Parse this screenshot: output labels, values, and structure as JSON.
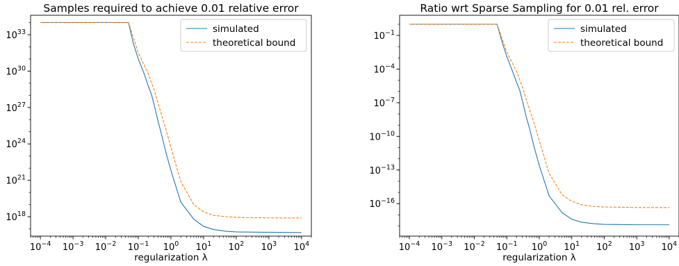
{
  "figure": {
    "panels": [
      {
        "title": "Samples required to achieve 0.01 relative error",
        "xlabel": "regularization λ"
      },
      {
        "title": "Ratio wrt Sparse Sampling for 0.01 rel. error",
        "xlabel": "regularization λ"
      }
    ]
  },
  "chart_data": [
    {
      "type": "line",
      "title": "Samples required to achieve 0.01 relative error",
      "xlabel": "regularization λ",
      "ylabel": "",
      "xscale": "log",
      "yscale": "log",
      "xlim": [
        5e-05,
        20000
      ],
      "ylim_exp": [
        16.4,
        34.6
      ],
      "xticks_exp": [
        -4,
        -3,
        -2,
        -1,
        0,
        1,
        2,
        3,
        4
      ],
      "yticks_exp": [
        18,
        21,
        24,
        27,
        30,
        33
      ],
      "legend": "top-right",
      "grid": false,
      "series": [
        {
          "name": "simulated",
          "color": "#1f77b4",
          "dash": "solid",
          "points": [
            [
              0.0001,
              1e+34
            ],
            [
              0.001,
              1e+34
            ],
            [
              0.01,
              1e+34
            ],
            [
              0.05,
              1e+34
            ],
            [
              0.07,
              2e+32
            ],
            [
              0.1,
              1e+31
            ],
            [
              0.15,
              6.3e+29
            ],
            [
              0.2,
              6.3e+28
            ],
            [
              0.25,
              1.3e+28
            ],
            [
              0.3,
              2e+27
            ],
            [
              0.4,
              7.9e+25
            ],
            [
              0.5,
              7.9e+24
            ],
            [
              0.7,
              2e+23
            ],
            [
              1,
              6.3e+21
            ],
            [
              2,
              1.6e+19
            ],
            [
              5,
              6.3e+17
            ],
            [
              10,
              1.6e+17
            ],
            [
              20,
              8.9e+16
            ],
            [
              50,
              6.3e+16
            ],
            [
              100,
              5.6e+16
            ],
            [
              1000,
              5.2e+16
            ],
            [
              10000,
              5e+16
            ]
          ]
        },
        {
          "name": "theoretical bound",
          "color": "#ff7f0e",
          "dash": "dashed",
          "points": [
            [
              0.0001,
              1e+34
            ],
            [
              0.001,
              1e+34
            ],
            [
              0.01,
              1e+34
            ],
            [
              0.05,
              1e+34
            ],
            [
              0.07,
              6.3e+32
            ],
            [
              0.1,
              3.2e+31
            ],
            [
              0.2,
              6.3e+29
            ],
            [
              0.3,
              3.2e+28
            ],
            [
              0.5,
              3.2e+26
            ],
            [
              0.7,
              1.6e+25
            ],
            [
              1,
              5e+23
            ],
            [
              2,
              7.9e+20
            ],
            [
              5,
              1e+19
            ],
            [
              10,
              2.5e+18
            ],
            [
              20,
              1.3e+18
            ],
            [
              50,
              1e+18
            ],
            [
              100,
              8.9e+17
            ],
            [
              1000,
              8e+17
            ],
            [
              10000,
              7.9e+17
            ]
          ]
        }
      ]
    },
    {
      "type": "line",
      "title": "Ratio wrt Sparse Sampling for 0.01 rel. error",
      "xlabel": "regularization λ",
      "ylabel": "",
      "xscale": "log",
      "yscale": "log",
      "xlim": [
        5e-05,
        20000
      ],
      "ylim_exp": [
        -18.9,
        0.8
      ],
      "xticks_exp": [
        -4,
        -3,
        -2,
        -1,
        0,
        1,
        2,
        3,
        4
      ],
      "yticks_exp": [
        -16,
        -13,
        -10,
        -7,
        -4,
        -1
      ],
      "legend": "top-right",
      "grid": false,
      "series": [
        {
          "name": "simulated",
          "color": "#1f77b4",
          "dash": "solid",
          "points": [
            [
              0.0001,
              1.0
            ],
            [
              0.001,
              1.0
            ],
            [
              0.01,
              1.0
            ],
            [
              0.05,
              1.0
            ],
            [
              0.07,
              0.032
            ],
            [
              0.1,
              0.0013
            ],
            [
              0.15,
              6.3e-05
            ],
            [
              0.2,
              6.3e-06
            ],
            [
              0.25,
              1.3e-06
            ],
            [
              0.3,
              1.6e-07
            ],
            [
              0.4,
              5e-09
            ],
            [
              0.5,
              5e-10
            ],
            [
              0.7,
              1e-11
            ],
            [
              1,
              2.5e-13
            ],
            [
              2,
              5e-16
            ],
            [
              5,
              1.6e-17
            ],
            [
              10,
              4e-18
            ],
            [
              20,
              2.2e-18
            ],
            [
              50,
              1.6e-18
            ],
            [
              100,
              1.4e-18
            ],
            [
              1000,
              1.3e-18
            ],
            [
              10000,
              1.3e-18
            ]
          ]
        },
        {
          "name": "theoretical bound",
          "color": "#ff7f0e",
          "dash": "dashed",
          "points": [
            [
              0.0001,
              1.0
            ],
            [
              0.001,
              1.0
            ],
            [
              0.01,
              1.0
            ],
            [
              0.05,
              1.0
            ],
            [
              0.07,
              0.063
            ],
            [
              0.1,
              0.0032
            ],
            [
              0.2,
              6.3e-05
            ],
            [
              0.3,
              2.5e-06
            ],
            [
              0.5,
              2.5e-08
            ],
            [
              0.7,
              1.3e-09
            ],
            [
              1,
              4e-11
            ],
            [
              2,
              5e-14
            ],
            [
              5,
              6.3e-16
            ],
            [
              10,
              1.6e-16
            ],
            [
              20,
              7.9e-17
            ],
            [
              50,
              5.6e-17
            ],
            [
              100,
              5e-17
            ],
            [
              1000,
              4.5e-17
            ],
            [
              10000,
              4.5e-17
            ]
          ]
        }
      ]
    }
  ]
}
